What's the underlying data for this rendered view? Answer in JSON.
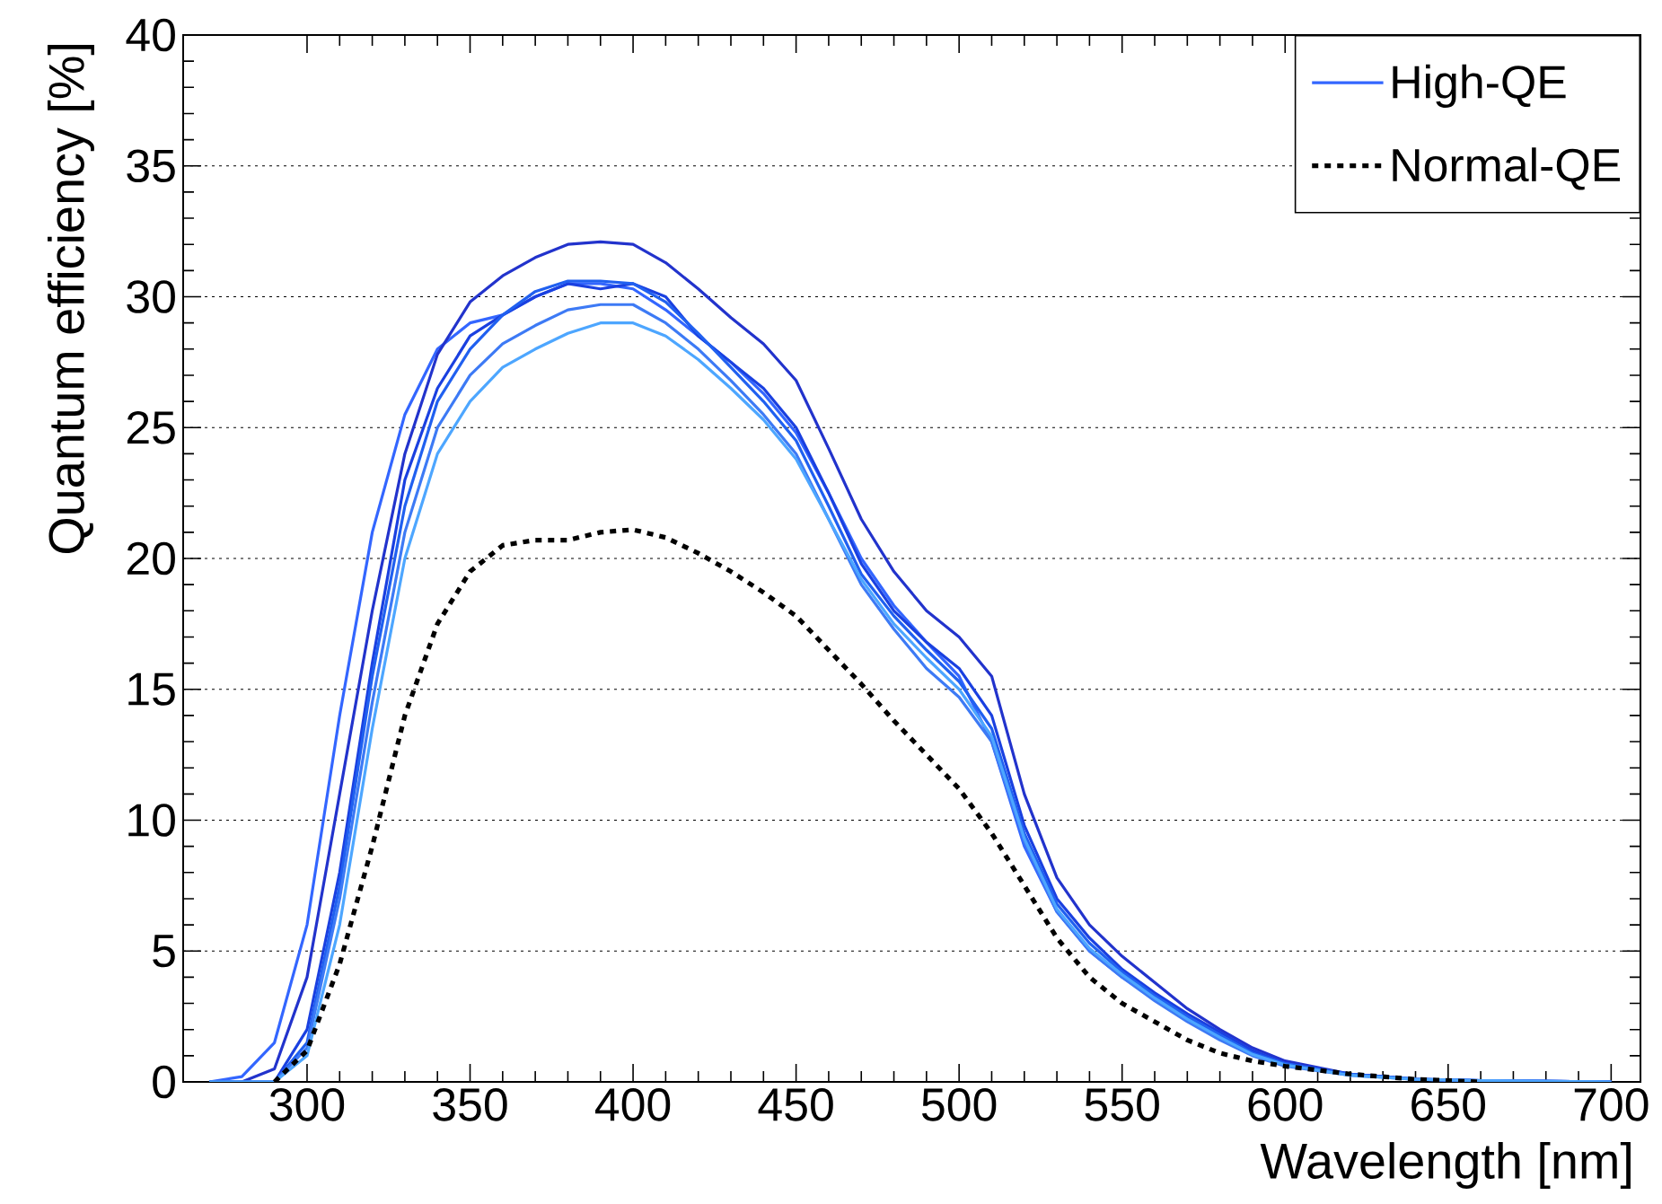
{
  "chart_data": {
    "type": "line",
    "xlabel": "Wavelength [nm]",
    "ylabel": "Quantum efficiency [%]",
    "xlim": [
      262,
      709
    ],
    "ylim": [
      0,
      40
    ],
    "xticks": [
      300,
      350,
      400,
      450,
      500,
      550,
      600,
      650,
      700
    ],
    "yticks": [
      0,
      5,
      10,
      15,
      20,
      25,
      30,
      35,
      40
    ],
    "grid": "y",
    "legend": "top right",
    "series": [
      {
        "name": "High-QE",
        "color": "#3366ff",
        "line_style": "solid",
        "x": [
          270,
          280,
          290,
          300,
          310,
          320,
          330,
          340,
          350,
          360,
          370,
          380,
          390,
          400,
          410,
          420,
          430,
          440,
          450,
          460,
          470,
          480,
          490,
          500,
          510,
          520,
          530,
          540,
          550,
          560,
          570,
          580,
          590,
          600,
          620,
          640,
          660,
          680,
          700
        ],
        "values": [
          0,
          0.2,
          1.5,
          6,
          14,
          21,
          25.5,
          28,
          29,
          29.3,
          30,
          30.5,
          30.5,
          30.3,
          29.5,
          28.5,
          27.5,
          26.3,
          24.8,
          22.5,
          20,
          18.2,
          16.8,
          15.5,
          13,
          9,
          6.5,
          5,
          4,
          3.2,
          2.4,
          1.7,
          1.1,
          0.7,
          0.3,
          0.1,
          0.05,
          0.02,
          0
        ]
      },
      {
        "color": "#2233cc",
        "line_style": "solid",
        "x": [
          270,
          280,
          290,
          300,
          310,
          320,
          330,
          340,
          350,
          360,
          370,
          380,
          390,
          400,
          410,
          420,
          430,
          440,
          450,
          460,
          470,
          480,
          490,
          500,
          510,
          520,
          530,
          540,
          550,
          560,
          570,
          580,
          590,
          600,
          620,
          640,
          660,
          680,
          700
        ],
        "values": [
          0,
          0,
          0.5,
          4,
          11,
          18,
          24,
          27.8,
          29.8,
          30.8,
          31.5,
          32,
          32.1,
          32,
          31.3,
          30.3,
          29.2,
          28.2,
          26.8,
          24.2,
          21.5,
          19.5,
          18,
          17,
          15.5,
          11,
          7.8,
          6,
          4.8,
          3.8,
          2.8,
          2,
          1.3,
          0.8,
          0.3,
          0.1,
          0.05,
          0.02,
          0
        ]
      },
      {
        "color": "#1a40e0",
        "line_style": "solid",
        "x": [
          270,
          280,
          290,
          300,
          310,
          320,
          330,
          340,
          350,
          360,
          370,
          380,
          390,
          400,
          410,
          420,
          430,
          440,
          450,
          460,
          470,
          480,
          490,
          500,
          510,
          520,
          530,
          540,
          550,
          560,
          570,
          580,
          590,
          600,
          620,
          640,
          660,
          680,
          700
        ],
        "values": [
          0,
          0,
          0,
          2,
          8,
          16,
          23,
          26.5,
          28.5,
          29.3,
          30,
          30.5,
          30.3,
          30.5,
          30,
          28.5,
          27.5,
          26.5,
          25,
          22.5,
          19.8,
          18,
          16.8,
          15.8,
          14,
          9.8,
          7,
          5.5,
          4.3,
          3.4,
          2.6,
          1.9,
          1.2,
          0.7,
          0.3,
          0.1,
          0.05,
          0.02,
          0
        ]
      },
      {
        "color": "#2060f0",
        "line_style": "solid",
        "x": [
          270,
          280,
          290,
          300,
          310,
          320,
          330,
          340,
          350,
          360,
          370,
          380,
          390,
          400,
          410,
          420,
          430,
          440,
          450,
          460,
          470,
          480,
          490,
          500,
          510,
          520,
          530,
          540,
          550,
          560,
          570,
          580,
          590,
          600,
          620,
          640,
          660,
          680,
          700
        ],
        "values": [
          0,
          0,
          0,
          1.5,
          7.5,
          15.5,
          22,
          26,
          28,
          29.3,
          30.2,
          30.6,
          30.6,
          30.5,
          29.8,
          28.6,
          27.3,
          26,
          24.5,
          22,
          19.4,
          17.8,
          16.5,
          15.3,
          13.5,
          9.5,
          6.8,
          5.3,
          4.2,
          3.3,
          2.5,
          1.8,
          1.1,
          0.7,
          0.3,
          0.1,
          0.05,
          0.02,
          0
        ]
      },
      {
        "color": "#3d7af5",
        "line_style": "solid",
        "x": [
          270,
          280,
          290,
          300,
          310,
          320,
          330,
          340,
          350,
          360,
          370,
          380,
          390,
          400,
          410,
          420,
          430,
          440,
          450,
          460,
          470,
          480,
          490,
          500,
          510,
          520,
          530,
          540,
          550,
          560,
          570,
          580,
          590,
          600,
          620,
          640,
          660,
          680,
          700
        ],
        "values": [
          0,
          0,
          0,
          1.3,
          7,
          14.5,
          21,
          25,
          27,
          28.2,
          28.9,
          29.5,
          29.7,
          29.7,
          29,
          28,
          26.8,
          25.5,
          24,
          21.5,
          19,
          17.3,
          15.8,
          14.7,
          13,
          9.2,
          6.5,
          5,
          4,
          3.1,
          2.3,
          1.6,
          1,
          0.6,
          0.25,
          0.1,
          0.05,
          0.02,
          0
        ]
      },
      {
        "color": "#4da6ff",
        "line_style": "solid",
        "x": [
          270,
          280,
          290,
          300,
          310,
          320,
          330,
          340,
          350,
          360,
          370,
          380,
          390,
          400,
          410,
          420,
          430,
          440,
          450,
          460,
          470,
          480,
          490,
          500,
          510,
          520,
          530,
          540,
          550,
          560,
          570,
          580,
          590,
          600,
          620,
          640,
          660,
          680,
          700
        ],
        "values": [
          0,
          0,
          0,
          1,
          6,
          13.5,
          20,
          24,
          26,
          27.3,
          28,
          28.6,
          29,
          29,
          28.5,
          27.6,
          26.5,
          25.3,
          23.8,
          21.5,
          19.2,
          17.5,
          16.2,
          15,
          13.2,
          9.3,
          6.6,
          5.1,
          4.1,
          3.2,
          2.4,
          1.7,
          1.05,
          0.65,
          0.25,
          0.1,
          0.05,
          0.02,
          0
        ]
      },
      {
        "name": "Normal-QE",
        "color": "#000000",
        "line_style": "dotted",
        "x": [
          290,
          300,
          310,
          320,
          330,
          340,
          350,
          360,
          370,
          380,
          390,
          400,
          410,
          420,
          430,
          440,
          450,
          460,
          470,
          480,
          490,
          500,
          510,
          520,
          530,
          540,
          550,
          560,
          570,
          580,
          590,
          600,
          620,
          640,
          660
        ],
        "values": [
          0,
          1.2,
          4.5,
          9,
          14,
          17.5,
          19.5,
          20.5,
          20.7,
          20.7,
          21,
          21.1,
          20.8,
          20.2,
          19.5,
          18.7,
          17.8,
          16.5,
          15.2,
          13.8,
          12.5,
          11.2,
          9.5,
          7.5,
          5.5,
          4,
          3,
          2.3,
          1.6,
          1.1,
          0.8,
          0.6,
          0.3,
          0.1,
          0
        ]
      }
    ]
  }
}
